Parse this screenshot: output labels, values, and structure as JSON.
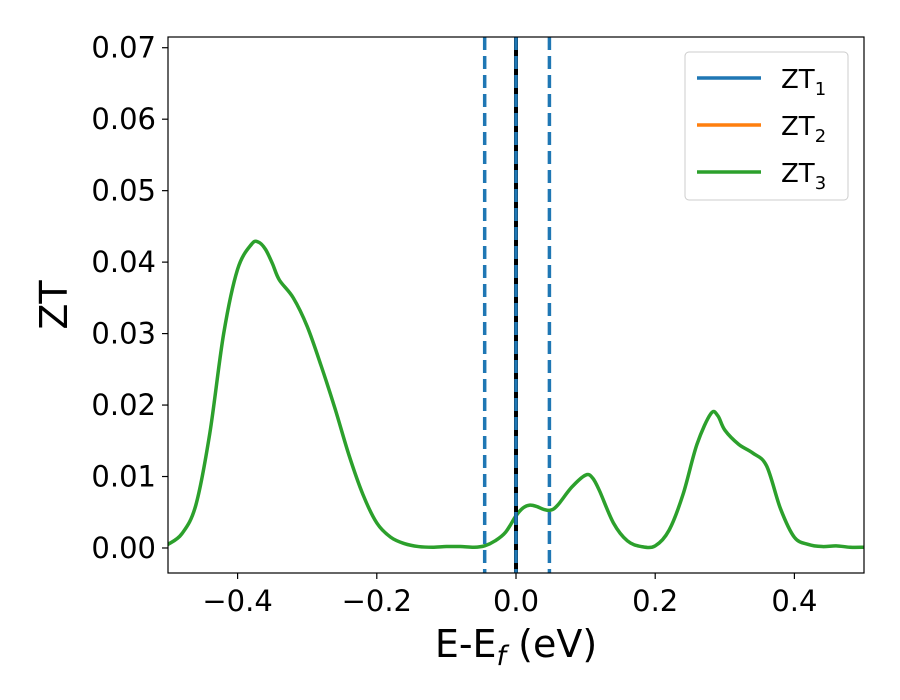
{
  "chart_data": {
    "type": "line",
    "xlabel": "E-E",
    "xlabel_sub": "f",
    "xlabel_unit": " (eV)",
    "ylabel": "ZT",
    "xlim": [
      -0.5,
      0.5
    ],
    "ylim": [
      -0.0035,
      0.0715
    ],
    "xticks": [
      -0.4,
      -0.2,
      0.0,
      0.2,
      0.4
    ],
    "xtick_labels": [
      "−0.4",
      "−0.2",
      "0.0",
      "0.2",
      "0.4"
    ],
    "yticks": [
      0.0,
      0.01,
      0.02,
      0.03,
      0.04,
      0.05,
      0.06,
      0.07
    ],
    "ytick_labels": [
      "0.00",
      "0.01",
      "0.02",
      "0.03",
      "0.04",
      "0.05",
      "0.06",
      "0.07"
    ],
    "grid": false,
    "legend_position": "top-right",
    "series": [
      {
        "name": "ZT",
        "sub": "1",
        "color": "#1f77b4",
        "x": [],
        "y": []
      },
      {
        "name": "ZT",
        "sub": "2",
        "color": "#ff7f0e",
        "x": [],
        "y": []
      },
      {
        "name": "ZT",
        "sub": "3",
        "color": "#2ca02c",
        "x": [
          -0.5,
          -0.48,
          -0.46,
          -0.44,
          -0.42,
          -0.4,
          -0.38,
          -0.37,
          -0.36,
          -0.35,
          -0.34,
          -0.32,
          -0.3,
          -0.28,
          -0.26,
          -0.24,
          -0.22,
          -0.2,
          -0.18,
          -0.16,
          -0.14,
          -0.12,
          -0.1,
          -0.08,
          -0.06,
          -0.045,
          -0.03,
          -0.015,
          0.0,
          0.01,
          0.02,
          0.03,
          0.04,
          0.05,
          0.06,
          0.08,
          0.1,
          0.11,
          0.12,
          0.14,
          0.16,
          0.18,
          0.2,
          0.22,
          0.24,
          0.26,
          0.28,
          0.29,
          0.3,
          0.32,
          0.34,
          0.36,
          0.38,
          0.4,
          0.42,
          0.44,
          0.46,
          0.48,
          0.5
        ],
        "y": [
          0.0005,
          0.002,
          0.006,
          0.016,
          0.03,
          0.039,
          0.0425,
          0.0428,
          0.0418,
          0.0398,
          0.0375,
          0.035,
          0.031,
          0.0255,
          0.0195,
          0.013,
          0.0075,
          0.0035,
          0.0015,
          0.0006,
          0.0002,
          0.0001,
          0.0002,
          0.0002,
          0.0001,
          0.0003,
          0.001,
          0.0022,
          0.0045,
          0.0056,
          0.006,
          0.0058,
          0.0054,
          0.0053,
          0.006,
          0.0085,
          0.0102,
          0.0098,
          0.008,
          0.0035,
          0.001,
          0.0002,
          0.0003,
          0.0025,
          0.0075,
          0.0145,
          0.0188,
          0.0185,
          0.0165,
          0.0145,
          0.0133,
          0.0115,
          0.0055,
          0.0015,
          0.0005,
          0.0002,
          0.0003,
          0.0001,
          0.0001
        ]
      }
    ],
    "vlines": [
      {
        "x": -0.045,
        "style": "dashed",
        "color": "#1f77b4"
      },
      {
        "x": 0.0,
        "style": "solid",
        "color": "#000000"
      },
      {
        "x": 0.0,
        "style": "dashed",
        "color": "#1f77b4"
      },
      {
        "x": 0.048,
        "style": "dashed",
        "color": "#1f77b4"
      }
    ]
  }
}
